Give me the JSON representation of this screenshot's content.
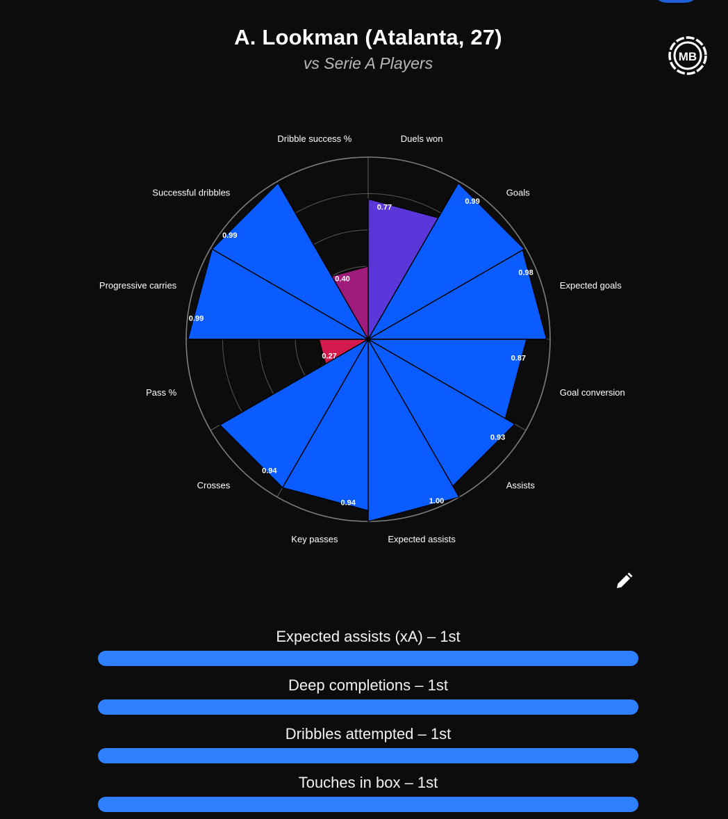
{
  "header": {
    "title": "A. Lookman (Atalanta, 27)",
    "subtitle": "vs Serie A Players"
  },
  "logo": {
    "text": "MB",
    "icon": "mb-logo-icon"
  },
  "edit_icon": "pencil-icon",
  "colors": {
    "background": "#0c0c0d",
    "high": "#0a5cff",
    "mid": "#5b36d8",
    "low_mid": "#a01c7c",
    "low": "#d31a4c",
    "bar": "#2f80ff",
    "grid": "#8a8a8a"
  },
  "chart_data": {
    "type": "polar-bar",
    "title": "A. Lookman (Atalanta, 27)",
    "subtitle": "vs Serie A Players",
    "rlim": [
      0,
      1
    ],
    "grid": true,
    "categories": [
      "Duels won",
      "Goals",
      "Expected goals",
      "Goal conversion",
      "Assists",
      "Expected assists",
      "Key passes",
      "Crosses",
      "Pass %",
      "Progressive carries",
      "Successful dribbles",
      "Dribble success %"
    ],
    "values": [
      0.77,
      0.99,
      0.98,
      0.87,
      0.93,
      1.0,
      0.94,
      0.94,
      0.27,
      0.99,
      0.99,
      0.4
    ],
    "value_labels": [
      "0.77",
      "0.99",
      "0.98",
      "0.87",
      "0.93",
      "1.00",
      "0.94",
      "0.94",
      "0.27",
      "0.99",
      "0.99",
      "0.40"
    ]
  },
  "metrics": [
    {
      "label": "Expected assists (xA) – 1st",
      "fill": 1.0
    },
    {
      "label": "Deep completions – 1st",
      "fill": 1.0
    },
    {
      "label": "Dribbles attempted – 1st",
      "fill": 1.0
    },
    {
      "label": "Touches in box – 1st",
      "fill": 1.0
    }
  ]
}
